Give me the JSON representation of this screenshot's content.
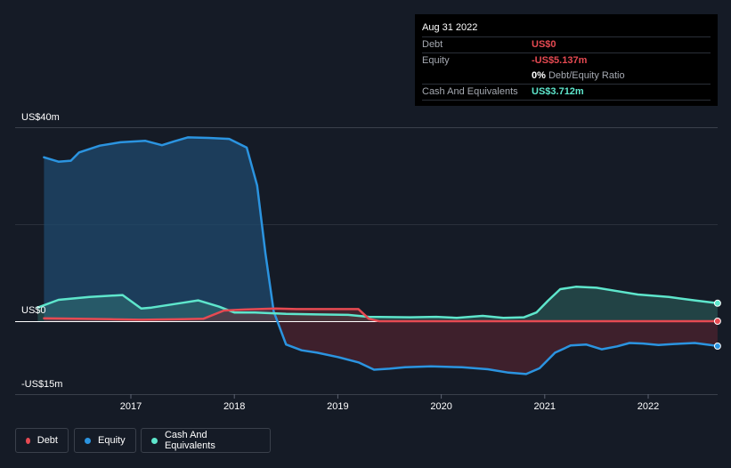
{
  "tooltip": {
    "date": "Aug 31 2022",
    "debt_label": "Debt",
    "debt_value": "US$0",
    "equity_label": "Equity",
    "equity_value": "-US$5.137m",
    "ratio_value": "0%",
    "ratio_label": "Debt/Equity Ratio",
    "cash_label": "Cash And Equivalents",
    "cash_value": "US$3.712m"
  },
  "axis": {
    "y_top_label": "US$40m",
    "y_zero_label": "US$0",
    "y_bottom_label": "-US$15m"
  },
  "legend": {
    "debt": "Debt",
    "equity": "Equity",
    "cash": "Cash And Equivalents"
  },
  "colors": {
    "debt": "#e64a52",
    "equity": "#2b94e0",
    "cash": "#5ee6cc",
    "background": "#151b26"
  },
  "chart_data": {
    "type": "area",
    "title": "",
    "xlabel": "",
    "ylabel": "",
    "ylim": [
      -15,
      40
    ],
    "xlim": [
      2016.1,
      2022.67
    ],
    "x_ticks": [
      2017,
      2018,
      2019,
      2020,
      2021,
      2022
    ],
    "x_tick_labels": [
      "2017",
      "2018",
      "2019",
      "2020",
      "2021",
      "2022"
    ],
    "series": [
      {
        "name": "Equity",
        "color": "#2b94e0",
        "points": [
          [
            2016.16,
            33.8
          ],
          [
            2016.3,
            32.9
          ],
          [
            2016.42,
            33.1
          ],
          [
            2016.5,
            34.8
          ],
          [
            2016.7,
            36.2
          ],
          [
            2016.9,
            36.9
          ],
          [
            2017.14,
            37.2
          ],
          [
            2017.3,
            36.3
          ],
          [
            2017.42,
            37.1
          ],
          [
            2017.55,
            37.9
          ],
          [
            2017.75,
            37.8
          ],
          [
            2017.95,
            37.6
          ],
          [
            2018.12,
            35.8
          ],
          [
            2018.22,
            28
          ],
          [
            2018.3,
            14
          ],
          [
            2018.38,
            2
          ],
          [
            2018.5,
            -4.8
          ],
          [
            2018.65,
            -6
          ],
          [
            2018.8,
            -6.5
          ],
          [
            2019.0,
            -7.4
          ],
          [
            2019.2,
            -8.5
          ],
          [
            2019.35,
            -10
          ],
          [
            2019.5,
            -9.8
          ],
          [
            2019.65,
            -9.5
          ],
          [
            2019.9,
            -9.3
          ],
          [
            2020.2,
            -9.5
          ],
          [
            2020.45,
            -9.9
          ],
          [
            2020.65,
            -10.6
          ],
          [
            2020.82,
            -10.9
          ],
          [
            2020.95,
            -9.7
          ],
          [
            2021.1,
            -6.5
          ],
          [
            2021.25,
            -5
          ],
          [
            2021.4,
            -4.8
          ],
          [
            2021.55,
            -5.8
          ],
          [
            2021.7,
            -5.2
          ],
          [
            2021.82,
            -4.5
          ],
          [
            2021.95,
            -4.6
          ],
          [
            2022.1,
            -4.9
          ],
          [
            2022.25,
            -4.7
          ],
          [
            2022.45,
            -4.5
          ],
          [
            2022.6,
            -4.9
          ],
          [
            2022.67,
            -5.137
          ]
        ]
      },
      {
        "name": "Cash And Equivalents",
        "color": "#5ee6cc",
        "points": [
          [
            2016.1,
            2.8
          ],
          [
            2016.3,
            4.4
          ],
          [
            2016.6,
            5
          ],
          [
            2016.92,
            5.4
          ],
          [
            2017.1,
            2.6
          ],
          [
            2017.2,
            2.8
          ],
          [
            2017.5,
            3.8
          ],
          [
            2017.65,
            4.3
          ],
          [
            2017.85,
            3
          ],
          [
            2018.0,
            1.8
          ],
          [
            2018.2,
            1.8
          ],
          [
            2018.5,
            1.5
          ],
          [
            2018.8,
            1.4
          ],
          [
            2019.1,
            1.3
          ],
          [
            2019.3,
            0.9
          ],
          [
            2019.7,
            0.8
          ],
          [
            2019.95,
            0.9
          ],
          [
            2020.15,
            0.7
          ],
          [
            2020.4,
            1.1
          ],
          [
            2020.6,
            0.7
          ],
          [
            2020.8,
            0.8
          ],
          [
            2020.92,
            1.8
          ],
          [
            2021.03,
            4.2
          ],
          [
            2021.15,
            6.6
          ],
          [
            2021.3,
            7.1
          ],
          [
            2021.5,
            6.9
          ],
          [
            2021.7,
            6.2
          ],
          [
            2021.9,
            5.5
          ],
          [
            2022.2,
            5
          ],
          [
            2022.45,
            4.3
          ],
          [
            2022.67,
            3.712
          ]
        ]
      },
      {
        "name": "Debt",
        "color": "#e64a52",
        "points": [
          [
            2016.16,
            0.6
          ],
          [
            2016.5,
            0.5
          ],
          [
            2016.8,
            0.4
          ],
          [
            2017.1,
            0.3
          ],
          [
            2017.5,
            0.4
          ],
          [
            2017.7,
            0.5
          ],
          [
            2017.9,
            2.2
          ],
          [
            2018.1,
            2.4
          ],
          [
            2018.4,
            2.6
          ],
          [
            2018.6,
            2.5
          ],
          [
            2018.8,
            2.5
          ],
          [
            2019.0,
            2.5
          ],
          [
            2019.2,
            2.5
          ],
          [
            2019.3,
            0.5
          ],
          [
            2019.4,
            0
          ],
          [
            2019.6,
            0
          ],
          [
            2020.0,
            0
          ],
          [
            2020.5,
            0
          ],
          [
            2021.0,
            0
          ],
          [
            2021.5,
            0
          ],
          [
            2022.0,
            0
          ],
          [
            2022.67,
            0
          ]
        ]
      }
    ]
  }
}
